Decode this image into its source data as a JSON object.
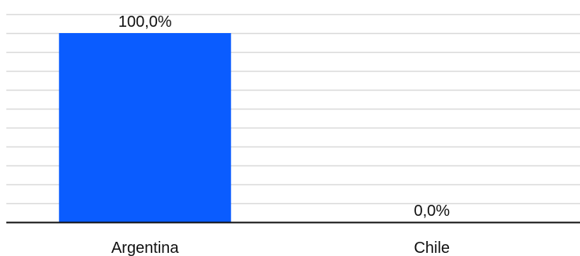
{
  "chart_data": {
    "type": "bar",
    "categories": [
      "Argentina",
      "Chile"
    ],
    "values": [
      100.0,
      0.0
    ],
    "value_labels": [
      "100,0%",
      "0,0%"
    ],
    "title": "",
    "xlabel": "",
    "ylabel": "",
    "ylim": [
      0,
      110
    ],
    "grid": true,
    "legend": "none",
    "colors": {
      "bar": "#0a5cff",
      "grid": "#d9d9d9",
      "axis": "#111111"
    }
  }
}
